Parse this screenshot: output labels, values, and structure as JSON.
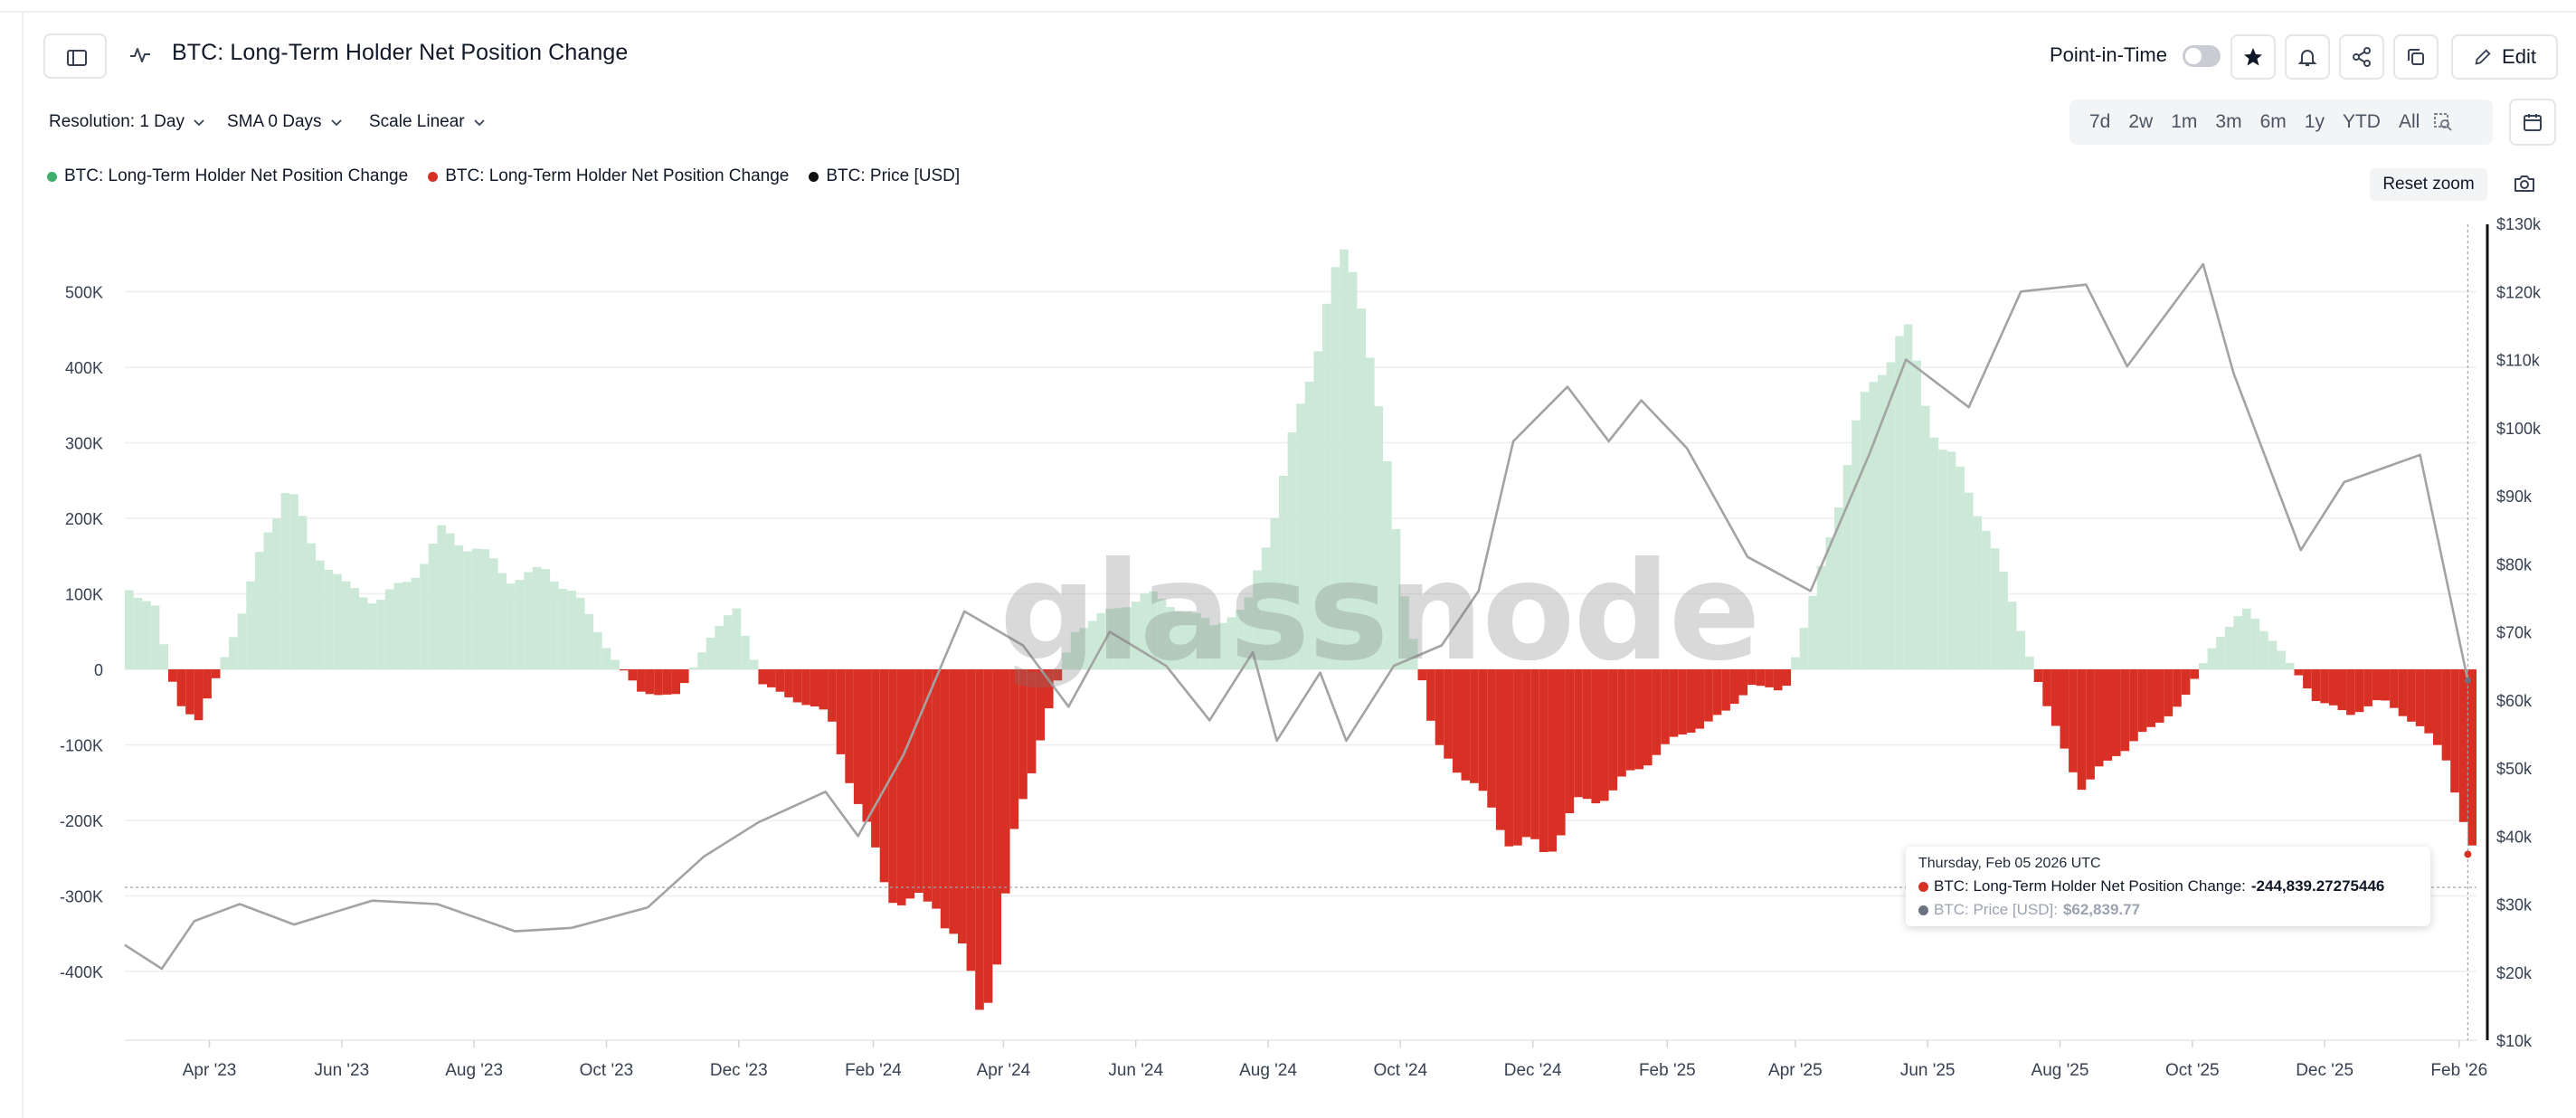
{
  "header": {
    "title": "BTC: Long-Term Holder Net Position Change",
    "point_in_time_label": "Point-in-Time",
    "edit_label": "Edit"
  },
  "controls": {
    "resolution": "Resolution: 1 Day",
    "sma": "SMA 0 Days",
    "scale": "Scale Linear",
    "ranges": [
      "7d",
      "2w",
      "1m",
      "3m",
      "6m",
      "1y",
      "YTD",
      "All"
    ]
  },
  "legend": [
    {
      "label": "BTC: Long-Term Holder Net Position Change",
      "color": "#3fae6b"
    },
    {
      "label": "BTC: Long-Term Holder Net Position Change",
      "color": "#d93025"
    },
    {
      "label": "BTC: Price [USD]",
      "color": "#111111"
    }
  ],
  "reset_zoom_label": "Reset zoom",
  "watermark": "glassnode",
  "tooltip": {
    "date": "Thursday, Feb 05 2026 UTC",
    "row1_label": "BTC: Long-Term Holder Net Position Change:",
    "row1_value": "-244,839.27275446",
    "row2_label": "BTC: Price [USD]:",
    "row2_value": "$62,839.77"
  },
  "colors": {
    "positive_fill": "#cbe9d6",
    "negative_fill": "#d93025",
    "price_line": "#a3a3a3",
    "grid": "#eeeeee"
  },
  "chart_data": {
    "type": "bar",
    "title": "BTC: Long-Term Holder Net Position Change",
    "x_range": [
      "2023-02-21",
      "2026-02-09"
    ],
    "x_ticks": [
      "Apr '23",
      "Jun '23",
      "Aug '23",
      "Oct '23",
      "Dec '23",
      "Feb '24",
      "Apr '24",
      "Jun '24",
      "Aug '24",
      "Oct '24",
      "Dec '24",
      "Feb '25",
      "Apr '25",
      "Jun '25",
      "Aug '25",
      "Oct '25",
      "Dec '25",
      "Feb '26"
    ],
    "y_left": {
      "ticks": [
        "500K",
        "400K",
        "300K",
        "200K",
        "100K",
        "0",
        "-100K",
        "-200K",
        "-300K",
        "-400K"
      ],
      "ylim": [
        -490000,
        560000
      ]
    },
    "y_right": {
      "ticks": [
        "$130k",
        "$120k",
        "$110k",
        "$100k",
        "$90k",
        "$80k",
        "$70k",
        "$60k",
        "$50k",
        "$40k",
        "$30k",
        "$20k",
        "$10k"
      ],
      "ylim": [
        10000,
        130000
      ]
    },
    "series": [
      {
        "name": "BTC: Long-Term Holder Net Position Change",
        "axis": "left",
        "x": [
          "2023-02-21",
          "2023-03-05",
          "2023-03-15",
          "2023-03-25",
          "2023-04-05",
          "2023-04-15",
          "2023-04-25",
          "2023-05-05",
          "2023-05-15",
          "2023-06-01",
          "2023-06-15",
          "2023-07-01",
          "2023-07-15",
          "2023-08-01",
          "2023-08-15",
          "2023-09-01",
          "2023-09-15",
          "2023-10-01",
          "2023-10-15",
          "2023-11-01",
          "2023-11-15",
          "2023-11-28",
          "2023-12-10",
          "2023-12-25",
          "2024-01-10",
          "2024-01-25",
          "2024-02-05",
          "2024-02-15",
          "2024-02-28",
          "2024-03-10",
          "2024-03-20",
          "2024-03-28",
          "2024-04-05",
          "2024-04-15",
          "2024-05-01",
          "2024-05-20",
          "2024-06-05",
          "2024-06-20",
          "2024-07-05",
          "2024-07-20",
          "2024-08-01",
          "2024-08-15",
          "2024-08-25",
          "2024-09-05",
          "2024-09-12",
          "2024-09-20",
          "2024-10-01",
          "2024-10-15",
          "2024-11-01",
          "2024-11-20",
          "2024-12-05",
          "2024-12-20",
          "2025-01-05",
          "2025-01-25",
          "2025-02-10",
          "2025-02-25",
          "2025-03-10",
          "2025-03-25",
          "2025-04-10",
          "2025-04-25",
          "2025-05-10",
          "2025-05-20",
          "2025-06-05",
          "2025-06-25",
          "2025-07-10",
          "2025-07-25",
          "2025-08-10",
          "2025-08-25",
          "2025-09-10",
          "2025-09-25",
          "2025-10-10",
          "2025-10-25",
          "2025-11-10",
          "2025-11-25",
          "2025-12-10",
          "2025-12-25",
          "2026-01-10",
          "2026-01-25",
          "2026-02-05"
        ],
        "values": [
          110000,
          80000,
          -40000,
          -70000,
          10000,
          80000,
          180000,
          245000,
          170000,
          110000,
          90000,
          120000,
          180000,
          160000,
          120000,
          130000,
          100000,
          20000,
          -30000,
          -35000,
          40000,
          80000,
          -20000,
          -40000,
          -60000,
          -200000,
          -280000,
          -320000,
          -300000,
          -380000,
          -440000,
          -380000,
          -200000,
          -100000,
          50000,
          80000,
          100000,
          80000,
          60000,
          80000,
          200000,
          350000,
          490000,
          535000,
          500000,
          320000,
          100000,
          -100000,
          -150000,
          -230000,
          -240000,
          -180000,
          -160000,
          -110000,
          -80000,
          -60000,
          -20000,
          -30000,
          120000,
          300000,
          420000,
          440000,
          300000,
          200000,
          70000,
          -60000,
          -160000,
          -110000,
          -80000,
          -40000,
          40000,
          80000,
          20000,
          -40000,
          -60000,
          -40000,
          -70000,
          -120000,
          -244839.27
        ]
      },
      {
        "name": "BTC: Price [USD]",
        "axis": "right",
        "x": [
          "2023-02-21",
          "2023-03-10",
          "2023-03-25",
          "2023-04-15",
          "2023-05-10",
          "2023-06-15",
          "2023-07-15",
          "2023-08-20",
          "2023-09-15",
          "2023-10-20",
          "2023-11-15",
          "2023-12-10",
          "2024-01-10",
          "2024-01-25",
          "2024-02-15",
          "2024-03-14",
          "2024-04-10",
          "2024-05-01",
          "2024-05-20",
          "2024-06-15",
          "2024-07-05",
          "2024-07-25",
          "2024-08-05",
          "2024-08-25",
          "2024-09-06",
          "2024-09-28",
          "2024-10-20",
          "2024-11-06",
          "2024-11-22",
          "2024-12-17",
          "2025-01-05",
          "2025-01-20",
          "2025-02-10",
          "2025-03-10",
          "2025-04-08",
          "2025-05-05",
          "2025-05-22",
          "2025-06-20",
          "2025-07-14",
          "2025-08-13",
          "2025-09-01",
          "2025-10-06",
          "2025-10-20",
          "2025-11-20",
          "2025-12-10",
          "2026-01-14",
          "2026-02-05"
        ],
        "values": [
          24000,
          20500,
          27500,
          30000,
          27000,
          30500,
          30000,
          26000,
          26500,
          29500,
          37000,
          42000,
          46500,
          40000,
          52000,
          73000,
          68000,
          59000,
          70000,
          65000,
          57000,
          67000,
          54000,
          64000,
          54000,
          65000,
          68000,
          76000,
          98000,
          106000,
          98000,
          104000,
          97000,
          81000,
          76000,
          96000,
          110000,
          103000,
          120000,
          121000,
          109000,
          124000,
          108000,
          82000,
          92000,
          96000,
          62839.77
        ]
      }
    ],
    "highlight": {
      "date": "2026-02-05",
      "value": -244839.27,
      "price": 62839.77
    }
  }
}
